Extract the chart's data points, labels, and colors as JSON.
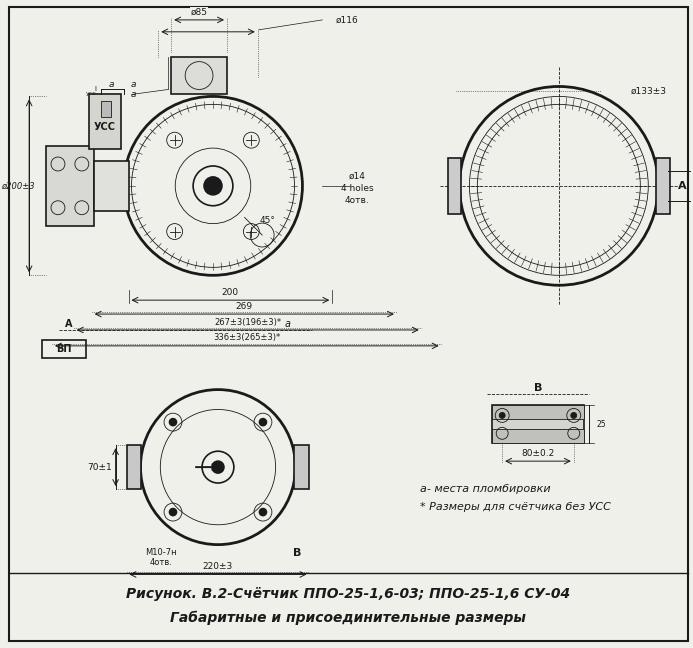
{
  "title_line1": "Рисунок. В.2-Счётчик ППО-25-1,6-03; ППО-25-1,6 СУ-04",
  "title_line2": "Габаритные и присоединительные размеры",
  "bg_color": "#f0f0eb",
  "line_color": "#1a1a1a",
  "note1": "а- места пломбировки",
  "note2": "* Размеры для счётчика без УСС",
  "dim_labels": {
    "d85": "ø85",
    "d116": "ø116",
    "d200": "ø200±3",
    "d133": "ø133±3",
    "d14": "ø14",
    "holes": "4 holes",
    "4ote": "4отв.",
    "200": "200",
    "269": "269",
    "dim267": "267±3(196±3)*",
    "dim336": "336±3(265±3)*",
    "70": "70±1",
    "220": "220±3",
    "80": "80±0.2",
    "M10": "М10-7н",
    "4otv": "4отв.",
    "45deg": "45°",
    "uss": "УСС",
    "vp": "ВП",
    "a_label": "а",
    "A_label": "А",
    "B_label": "В"
  }
}
